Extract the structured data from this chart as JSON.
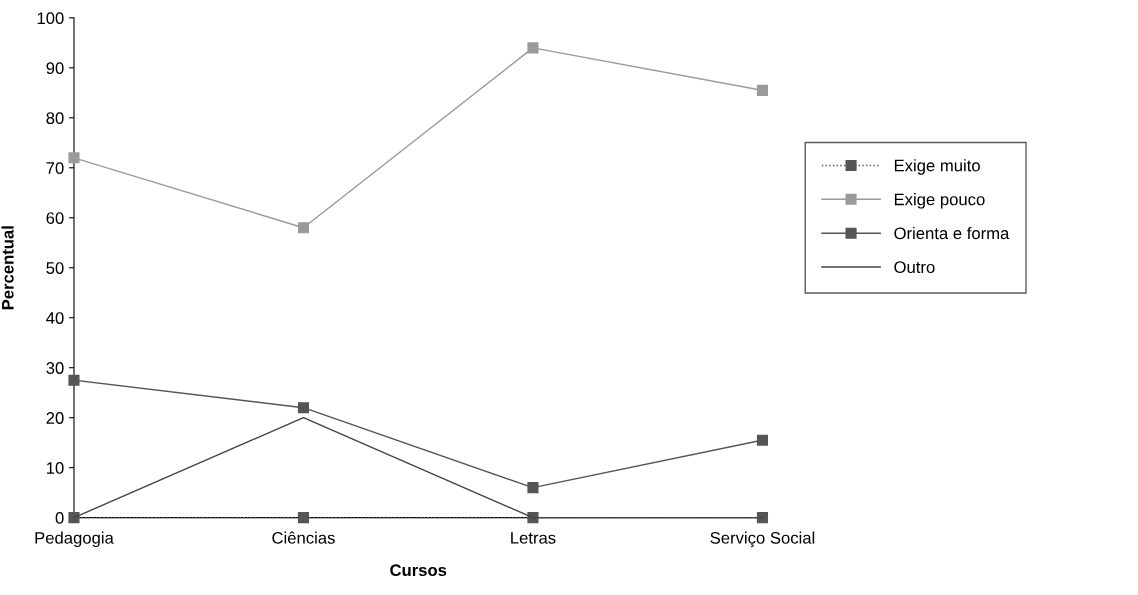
{
  "chart_data": {
    "type": "line",
    "xlabel": "Cursos",
    "ylabel": "Percentual",
    "categories": [
      "Pedagogia",
      "Ciências",
      "Letras",
      "Serviço Social"
    ],
    "series": [
      {
        "name": "Exige muito",
        "color": "#555555",
        "values": [
          0,
          0,
          0,
          0
        ],
        "marker": "square",
        "line_style": "dotted"
      },
      {
        "name": "Exige pouco",
        "color": "#9a9a9a",
        "values": [
          72,
          58,
          94,
          85.5
        ],
        "marker": "square",
        "line_style": "solid"
      },
      {
        "name": "Orienta e forma",
        "color": "#555555",
        "values": [
          27.5,
          22,
          6,
          15.5
        ],
        "marker": "square",
        "line_style": "solid"
      },
      {
        "name": "Outro",
        "color": "#444444",
        "values": [
          0,
          20,
          0,
          0
        ],
        "marker": "none",
        "line_style": "solid"
      }
    ],
    "ylim": [
      0,
      100
    ],
    "yticks": [
      0,
      10,
      20,
      30,
      40,
      50,
      60,
      70,
      80,
      90,
      100
    ],
    "grid": false,
    "legend": "right"
  }
}
